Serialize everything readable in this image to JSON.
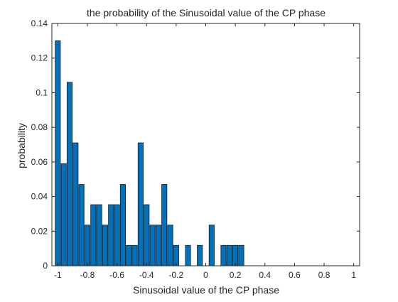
{
  "chart_data": {
    "type": "bar",
    "title": "the probability of the Sinusoidal value of the CP phase",
    "xlabel": "Sinusoidal value of the CP phase",
    "ylabel": "probability",
    "xlim": [
      -1.04,
      1.04
    ],
    "ylim": [
      0,
      0.14
    ],
    "grid": false,
    "bar_color": "#0072BD",
    "bar_edge_color": "#1a1a1a",
    "bar_width": 0.035,
    "x_ticks": [
      {
        "value": -1,
        "label": "-1"
      },
      {
        "value": -0.8,
        "label": "-0.8"
      },
      {
        "value": -0.6,
        "label": "-0.6"
      },
      {
        "value": -0.4,
        "label": "-0.4"
      },
      {
        "value": -0.2,
        "label": "-0.2"
      },
      {
        "value": 0,
        "label": "0"
      },
      {
        "value": 0.2,
        "label": "0.2"
      },
      {
        "value": 0.4,
        "label": "0.4"
      },
      {
        "value": 0.6,
        "label": "0.6"
      },
      {
        "value": 0.8,
        "label": "0.8"
      },
      {
        "value": 1,
        "label": "1"
      }
    ],
    "y_ticks": [
      {
        "value": 0,
        "label": "0"
      },
      {
        "value": 0.02,
        "label": "0.02"
      },
      {
        "value": 0.04,
        "label": "0.04"
      },
      {
        "value": 0.06,
        "label": "0.06"
      },
      {
        "value": 0.08,
        "label": "0.08"
      },
      {
        "value": 0.1,
        "label": "0.1"
      },
      {
        "value": 0.12,
        "label": "0.12"
      },
      {
        "value": 0.14,
        "label": "0.14"
      }
    ],
    "x": [
      -1.0,
      -0.96,
      -0.92,
      -0.88,
      -0.84,
      -0.8,
      -0.76,
      -0.72,
      -0.68,
      -0.64,
      -0.6,
      -0.56,
      -0.52,
      -0.48,
      -0.44,
      -0.4,
      -0.36,
      -0.32,
      -0.28,
      -0.24,
      -0.2,
      -0.16,
      -0.12,
      -0.08,
      -0.04,
      0.0,
      0.04,
      0.08,
      0.12,
      0.16,
      0.2,
      0.24,
      0.28,
      0.32
    ],
    "values": [
      0.13,
      0.059,
      0.106,
      0.071,
      0.047,
      0.0235,
      0.0353,
      0.0353,
      0.0235,
      0.0353,
      0.0353,
      0.047,
      0.0118,
      0.0118,
      0.071,
      0.0353,
      0.0235,
      0.0235,
      0.047,
      0.0235,
      0.0118,
      0.0,
      0.0118,
      0.0,
      0.0118,
      0.0,
      0.0235,
      0.0,
      0.0118,
      0.0118,
      0.0118,
      0.0118,
      0.0,
      0.0
    ]
  }
}
